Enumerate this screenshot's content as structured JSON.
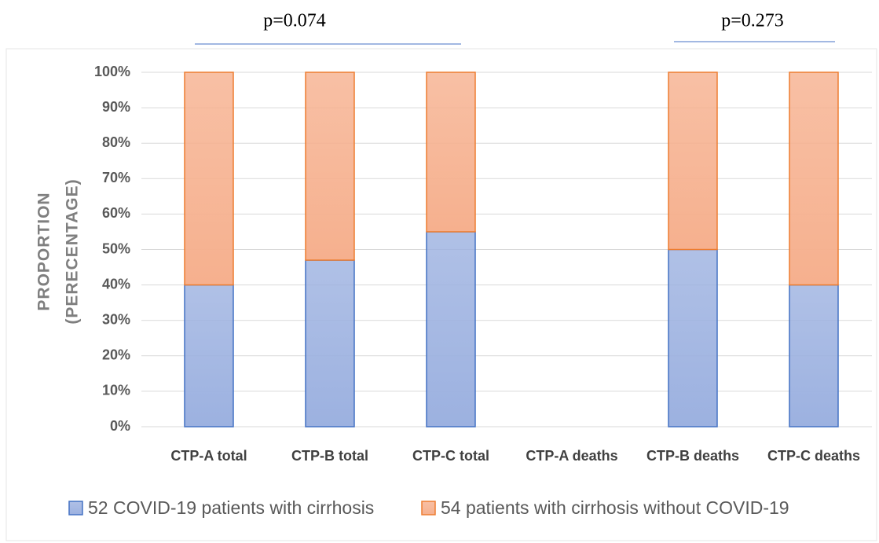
{
  "chart_data": {
    "type": "stacked_bar",
    "annotations": [
      {
        "text": "p=0.074"
      },
      {
        "text": "p=0.273"
      }
    ],
    "ylabel": [
      "PROPORTION",
      "(PERECENTAGE)"
    ],
    "categories": [
      "CTP-A total",
      "CTP-B total",
      "CTP-C total",
      "CTP-A deaths",
      "CTP-B deaths",
      "CTP-C deaths"
    ],
    "series": [
      {
        "name": "52 COVID-19 patients with cirrhosis",
        "color": "#9cb1e0",
        "edge": "#4472c4",
        "values": [
          40,
          47,
          55,
          null,
          50,
          40
        ]
      },
      {
        "name": "54 patients with cirrhosis without COVID-19",
        "color": "#f6b08e",
        "edge": "#ed7d31",
        "values": [
          60,
          53,
          45,
          null,
          50,
          60
        ]
      }
    ],
    "ylim": [
      0,
      100
    ],
    "yticks": [
      {
        "value": 0,
        "label": "0%"
      },
      {
        "value": 10,
        "label": "10%"
      },
      {
        "value": 20,
        "label": "20%"
      },
      {
        "value": 30,
        "label": "30%"
      },
      {
        "value": 40,
        "label": "40%"
      },
      {
        "value": 50,
        "label": "50%"
      },
      {
        "value": 60,
        "label": "60%"
      },
      {
        "value": 70,
        "label": "70%"
      },
      {
        "value": 80,
        "label": "80%"
      },
      {
        "value": 90,
        "label": "90%"
      },
      {
        "value": 100,
        "label": "100%"
      }
    ],
    "grid": true,
    "legend": "bottom"
  }
}
